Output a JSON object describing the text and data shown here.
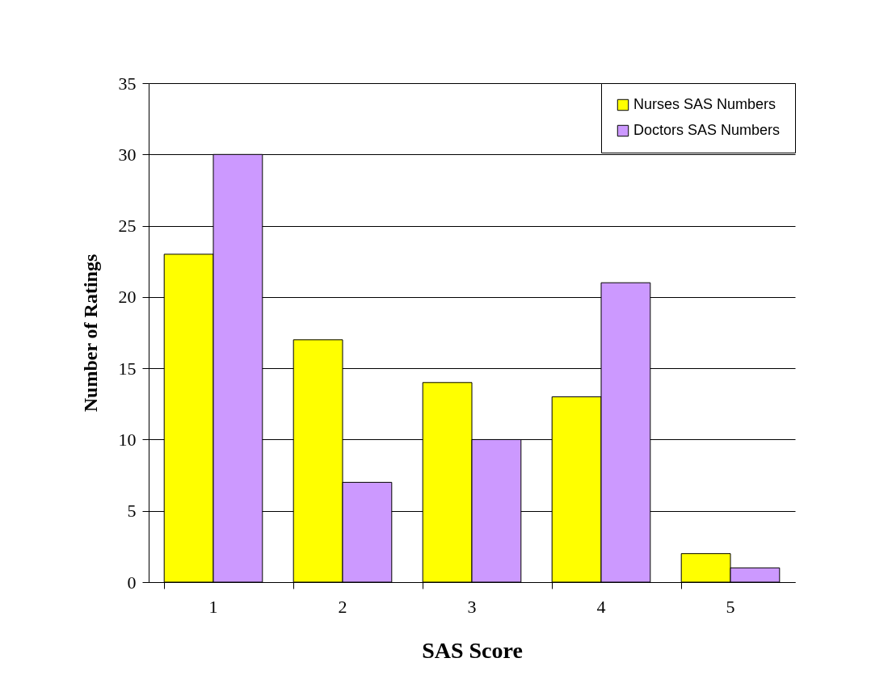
{
  "chart_data": {
    "type": "bar",
    "xlabel": "SAS Score",
    "ylabel": "Number of Ratings",
    "categories": [
      "1",
      "2",
      "3",
      "4",
      "5"
    ],
    "series": [
      {
        "name": "Nurses SAS Numbers",
        "color": "#ffff00",
        "values": [
          23,
          17,
          14,
          13,
          2
        ]
      },
      {
        "name": "Doctors SAS Numbers",
        "color": "#cc99ff",
        "values": [
          30,
          7,
          10,
          21,
          1
        ]
      }
    ],
    "ylim": [
      0,
      35
    ],
    "yticks": [
      0,
      5,
      10,
      15,
      20,
      25,
      30,
      35
    ],
    "grid": "y",
    "legend": "top right"
  }
}
